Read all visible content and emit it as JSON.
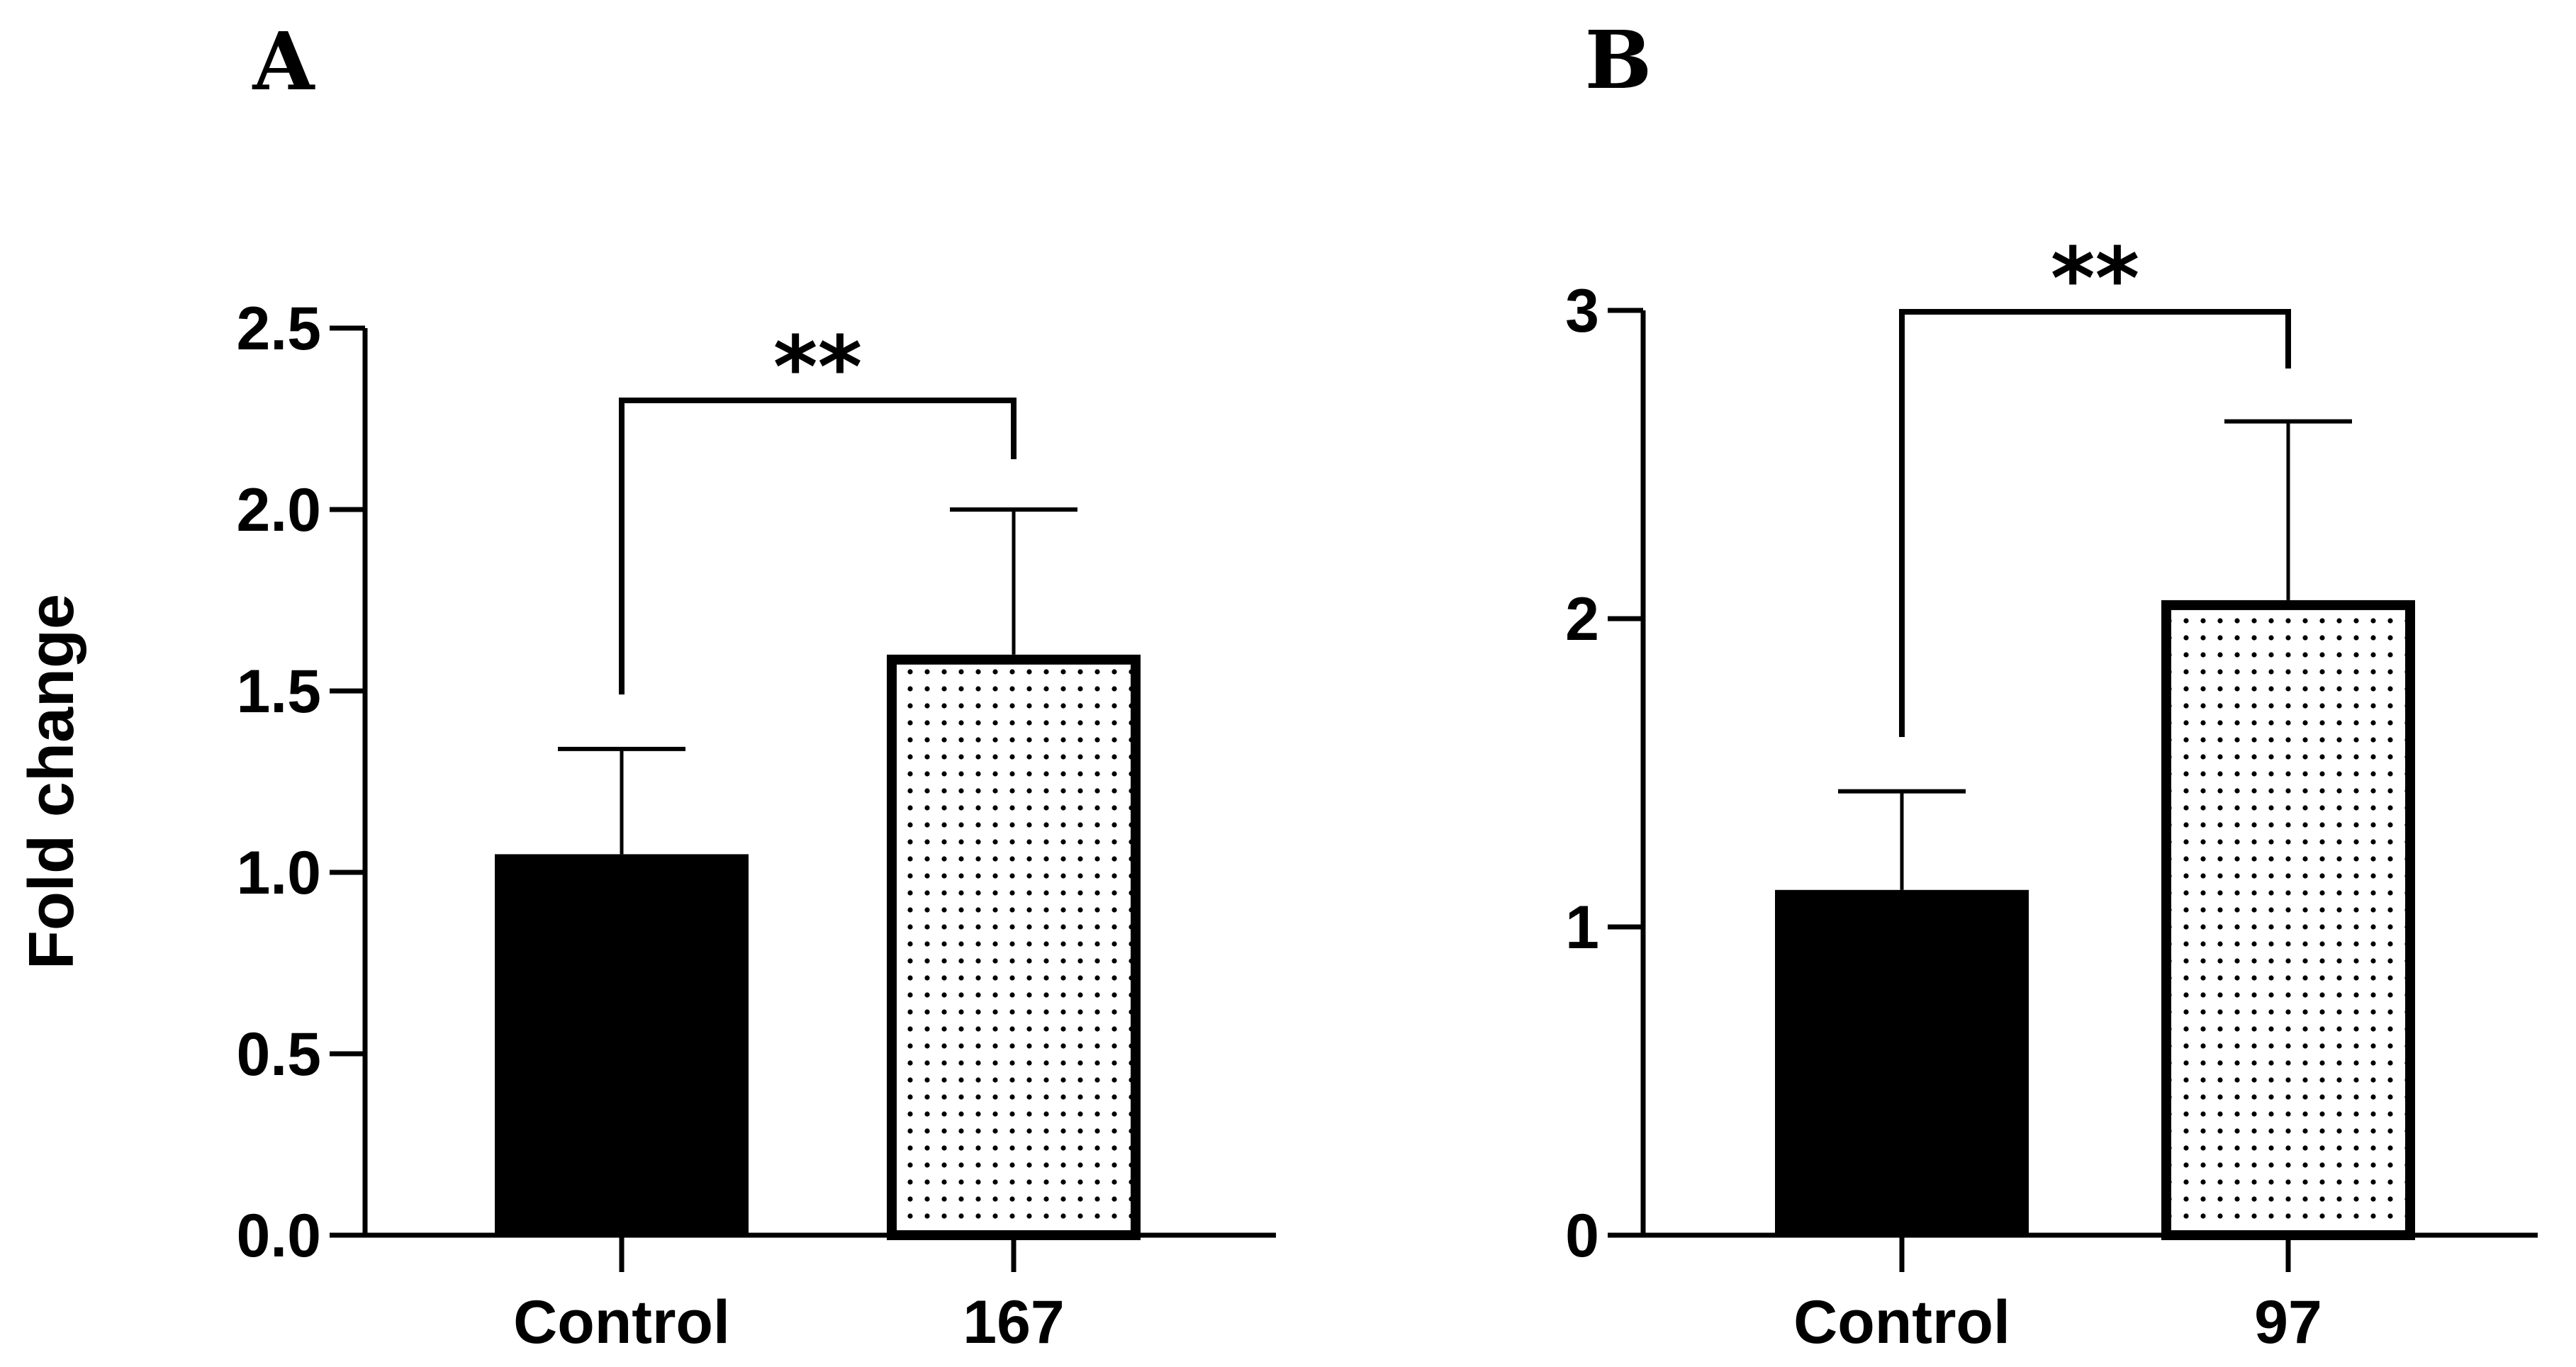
{
  "figure": {
    "ylabel": "Fold change"
  },
  "chart_data": [
    {
      "panel": "A",
      "type": "bar",
      "title": "",
      "xlabel": "",
      "ylabel": "Fold change",
      "categories": [
        "Control",
        "167"
      ],
      "values": [
        1.05,
        1.6
      ],
      "errors": [
        0.29,
        0.4
      ],
      "ylim": [
        0,
        2.5
      ],
      "yticks": [
        "0.0",
        "0.5",
        "1.0",
        "1.5",
        "2.0",
        "2.5"
      ],
      "bar_styles": [
        "solid",
        "dotted"
      ],
      "significance": {
        "label": "**",
        "between": [
          "Control",
          "167"
        ]
      },
      "grid": false
    },
    {
      "panel": "B",
      "type": "bar",
      "title": "",
      "xlabel": "",
      "ylabel": "",
      "categories": [
        "Control",
        "97"
      ],
      "values": [
        1.12,
        2.06
      ],
      "errors": [
        0.32,
        0.58
      ],
      "ylim": [
        0,
        3
      ],
      "yticks": [
        "0",
        "1",
        "2",
        "3"
      ],
      "bar_styles": [
        "solid",
        "dotted"
      ],
      "significance": {
        "label": "**",
        "between": [
          "Control",
          "97"
        ]
      },
      "grid": false
    }
  ]
}
